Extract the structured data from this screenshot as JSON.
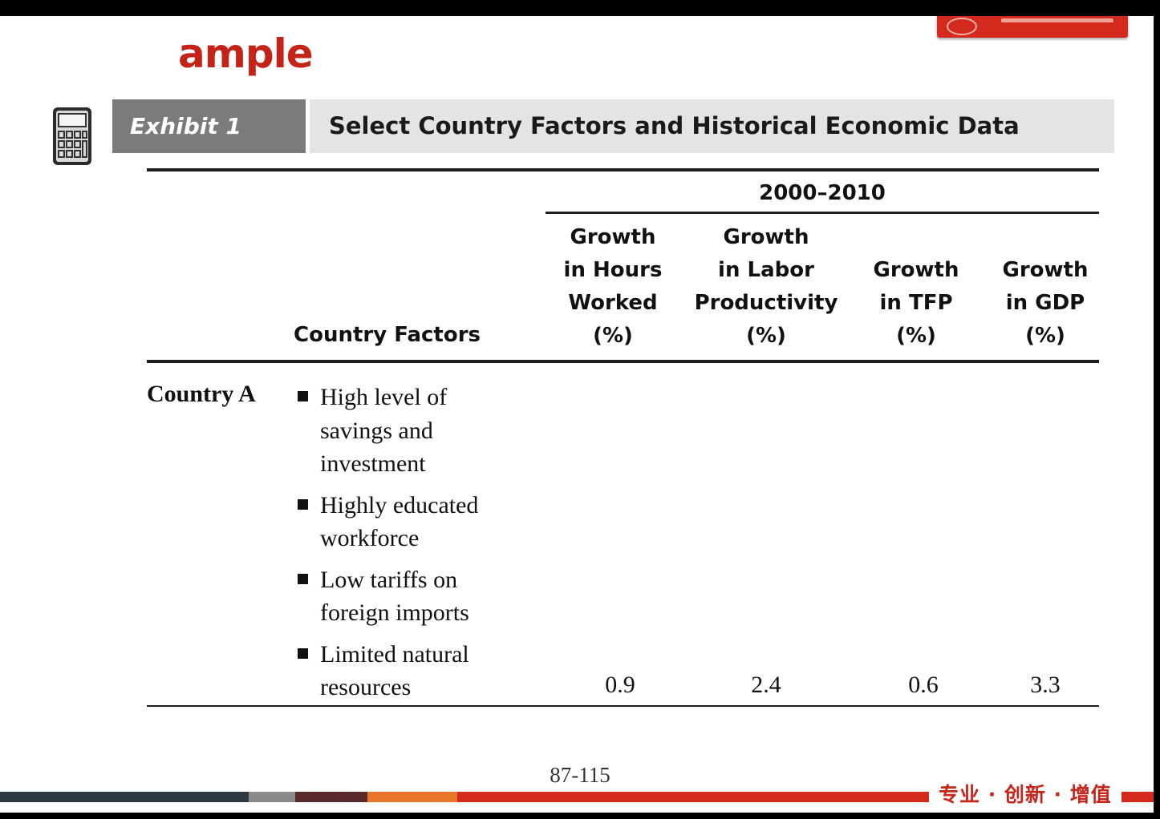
{
  "slide": {
    "title": "ample",
    "page_number": "87-115",
    "footer_slogan": "专业 · 创新 · 增值"
  },
  "exhibit": {
    "label": "Exhibit 1",
    "title": "Select Country Factors and Historical Economic Data"
  },
  "table": {
    "period": "2000–2010",
    "factors_header": "Country Factors",
    "columns": [
      {
        "lines": [
          "Growth",
          "in Hours",
          "Worked",
          "(%)"
        ]
      },
      {
        "lines": [
          "Growth",
          "in Labor",
          "Productivity",
          "(%)"
        ]
      },
      {
        "lines": [
          "Growth",
          "in TFP",
          "(%)"
        ]
      },
      {
        "lines": [
          "Growth",
          "in GDP",
          "(%)"
        ]
      }
    ],
    "rows": [
      {
        "country": "Country A",
        "factors": [
          "High level of savings and investment",
          "Highly educated workforce",
          "Low tariffs on foreign imports",
          "Limited natural resources"
        ],
        "values": [
          "0.9",
          "2.4",
          "0.6",
          "3.3"
        ]
      }
    ]
  },
  "colors": {
    "accent_red": "#c52318",
    "exhibit_label_bg": "#7b7b7b",
    "exhibit_title_bg": "#e4e4e4"
  },
  "icons": {
    "exhibit_icon": "calculator-icon"
  }
}
